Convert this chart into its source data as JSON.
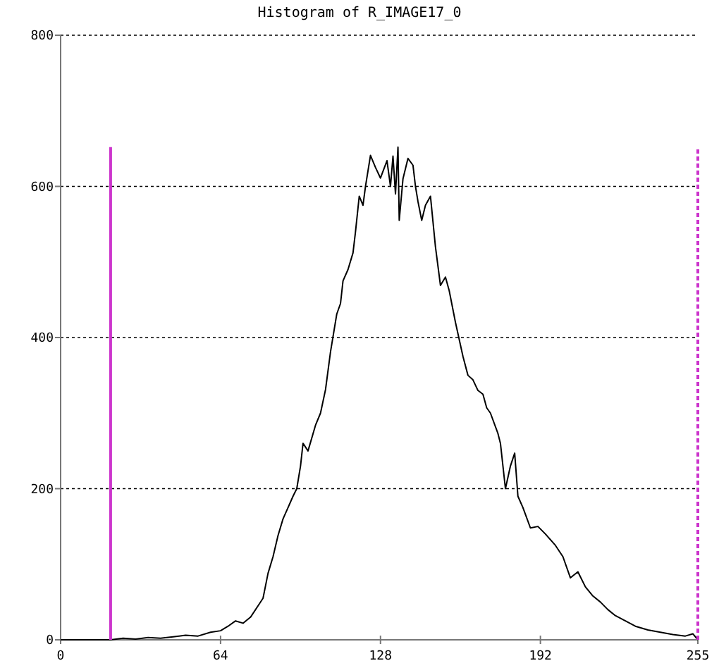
{
  "chart_data": {
    "type": "line",
    "title": "Histogram of R_IMAGE17_0",
    "x": [
      0,
      20,
      25,
      30,
      35,
      40,
      45,
      50,
      55,
      60,
      64,
      67,
      70,
      73,
      76,
      79,
      81,
      83,
      85,
      87,
      89,
      91,
      93,
      94.5,
      96,
      97,
      99,
      102,
      104,
      106,
      108,
      110.5,
      112,
      113,
      115,
      117,
      118,
      119.5,
      121,
      122,
      124,
      126,
      128,
      129,
      130.6,
      132,
      133,
      134,
      135,
      135.5,
      137,
      139,
      141,
      142,
      143,
      144.5,
      146,
      148,
      150,
      152,
      154,
      155.5,
      158,
      161,
      163,
      165,
      167,
      169,
      170.5,
      172,
      175,
      176,
      178,
      180,
      181.7,
      183,
      185,
      188,
      191,
      194,
      198,
      201,
      204,
      207,
      210,
      213,
      216,
      219,
      222,
      226,
      230,
      235,
      240,
      245,
      250,
      253,
      255
    ],
    "series": [
      {
        "color": "#000000",
        "values": [
          0,
          0,
          2,
          1,
          3,
          2,
          4,
          6,
          5,
          10,
          12,
          18,
          25,
          22,
          30,
          45,
          55,
          88,
          110,
          138,
          160,
          175,
          190,
          200,
          230,
          260,
          250,
          284,
          300,
          331,
          381,
          431,
          445,
          475,
          490,
          512,
          540,
          587,
          575,
          600,
          641,
          625,
          611,
          620,
          634,
          600,
          640,
          590,
          652,
          555,
          610,
          637,
          628,
          600,
          580,
          555,
          575,
          587,
          520,
          469,
          480,
          462,
          420,
          375,
          350,
          344,
          330,
          325,
          307,
          300,
          273,
          260,
          200,
          230,
          247,
          190,
          175,
          148,
          150,
          140,
          125,
          110,
          82,
          90,
          70,
          58,
          50,
          40,
          32,
          25,
          18,
          13,
          10,
          7,
          5,
          8,
          0
        ]
      }
    ],
    "xlim": [
      0,
      255
    ],
    "xticks": [
      0,
      64,
      128,
      192,
      255
    ],
    "ylim": [
      0,
      800
    ],
    "yticks": [
      0,
      200,
      400,
      600,
      800
    ],
    "grid": "y",
    "ref_lines": [
      {
        "axis": "x",
        "value": 20,
        "color": "#cc33cc",
        "line_style": "solid"
      },
      {
        "axis": "x",
        "value": 255,
        "color": "#cc33cc",
        "line_style": "dashed"
      }
    ]
  }
}
